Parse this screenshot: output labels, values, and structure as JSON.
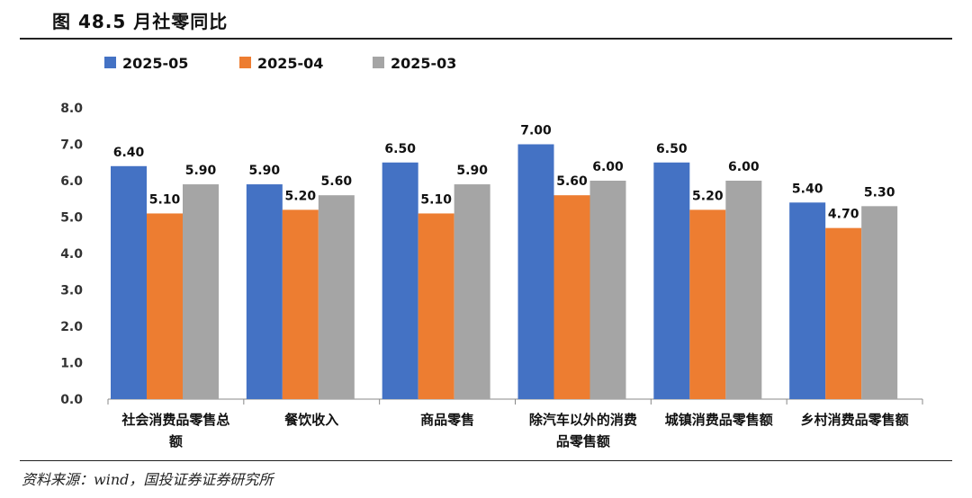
{
  "figure_title": "图 48.5 月社零同比",
  "source": "资料来源：wind，国投证券证券研究所",
  "chart_data": {
    "type": "bar",
    "categories": [
      [
        "社会消费品零售总",
        "额"
      ],
      [
        "餐饮收入"
      ],
      [
        "商品零售"
      ],
      [
        "除汽车以外的消费",
        "品零售额"
      ],
      [
        "城镇消费品零售额"
      ],
      [
        "乡村消费品零售额"
      ]
    ],
    "series": [
      {
        "name": "2025-05",
        "color": "#4472C4",
        "values": [
          6.4,
          5.9,
          6.5,
          7.0,
          6.5,
          5.4
        ],
        "labels": [
          "6.40",
          "5.90",
          "6.50",
          "7.00",
          "6.50",
          "5.40"
        ]
      },
      {
        "name": "2025-04",
        "color": "#ED7D31",
        "values": [
          5.1,
          5.2,
          5.1,
          5.6,
          5.2,
          4.7
        ],
        "labels": [
          "5.10",
          "5.20",
          "5.10",
          "5.60",
          "5.20",
          "4.70"
        ]
      },
      {
        "name": "2025-03",
        "color": "#A5A5A5",
        "values": [
          5.9,
          5.6,
          5.9,
          6.0,
          6.0,
          5.3
        ],
        "labels": [
          "5.90",
          "5.60",
          "5.90",
          "6.00",
          "6.00",
          "5.30"
        ]
      }
    ],
    "ylim": [
      0,
      8
    ],
    "yticks": [
      "0.0",
      "1.0",
      "2.0",
      "3.0",
      "4.0",
      "5.0",
      "6.0",
      "7.0",
      "8.0"
    ],
    "ytick_values": [
      0,
      1,
      2,
      3,
      4,
      5,
      6,
      7,
      8
    ],
    "grid": false,
    "legend_position": "top-left"
  }
}
